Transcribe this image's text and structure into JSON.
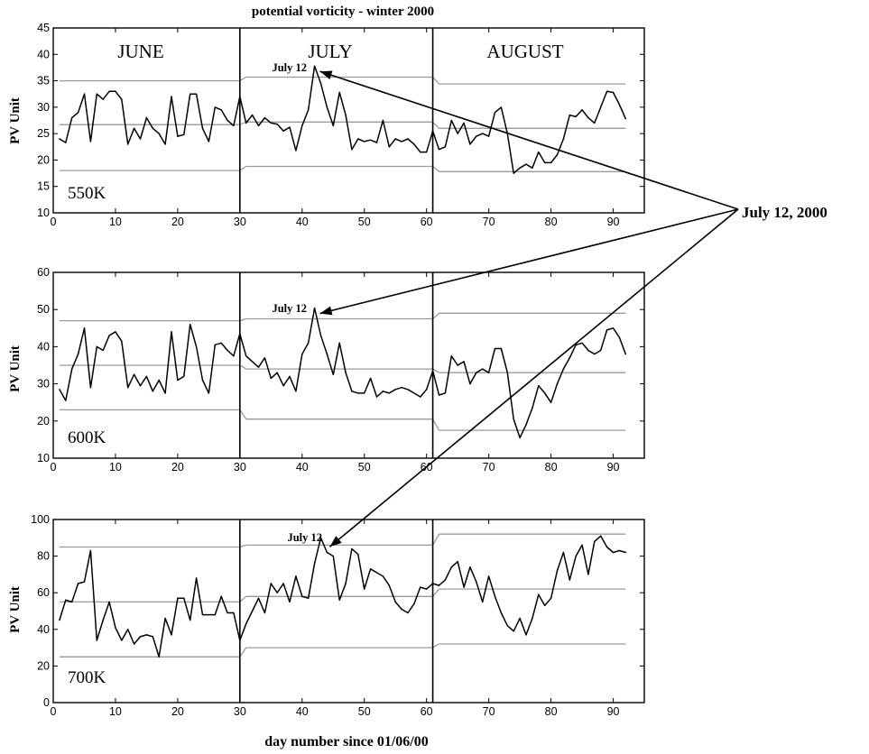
{
  "title": "potential vorticity - winter 2000",
  "xlabel": "day number since 01/06/00",
  "callout_label": "July 12, 2000",
  "months": [
    "JUNE",
    "JULY",
    "AUGUST"
  ],
  "chart_data": [
    {
      "type": "line",
      "level": "550K",
      "ylabel": "PV Unit",
      "xlim": [
        0,
        95
      ],
      "ylim": [
        10,
        45
      ],
      "xticks": [
        0,
        10,
        20,
        30,
        40,
        50,
        60,
        70,
        80,
        90
      ],
      "yticks": [
        10,
        15,
        20,
        25,
        30,
        35,
        40,
        45
      ],
      "month_boundaries": [
        30,
        61
      ],
      "annotation": {
        "text": "July 12",
        "x": 42,
        "y": 37.8
      },
      "series": [
        {
          "role": "data",
          "x": [
            1,
            2,
            3,
            4,
            5,
            6,
            7,
            8,
            9,
            10,
            11,
            12,
            13,
            14,
            15,
            16,
            17,
            18,
            19,
            20,
            21,
            22,
            23,
            24,
            25,
            26,
            27,
            28,
            29,
            30,
            31,
            32,
            33,
            34,
            35,
            36,
            37,
            38,
            39,
            40,
            41,
            42,
            43,
            44,
            45,
            46,
            47,
            48,
            49,
            50,
            51,
            52,
            53,
            54,
            55,
            56,
            57,
            58,
            59,
            60,
            61,
            62,
            63,
            64,
            65,
            66,
            67,
            68,
            69,
            70,
            71,
            72,
            73,
            74,
            75,
            76,
            77,
            78,
            79,
            80,
            81,
            82,
            83,
            84,
            85,
            86,
            87,
            88,
            89,
            90,
            91,
            92
          ],
          "y": [
            24,
            23.3,
            28,
            29,
            32.5,
            23.5,
            32.5,
            31.5,
            33,
            33,
            31.5,
            23,
            26,
            24,
            28,
            26,
            25,
            23,
            32,
            24.5,
            24.8,
            32.5,
            32.5,
            26,
            23.5,
            30,
            29.5,
            27.5,
            26.5,
            32,
            27,
            28.5,
            26.5,
            28,
            27,
            26.8,
            25.5,
            26.2,
            21.8,
            26.5,
            29.5,
            37.8,
            34.5,
            30,
            26.5,
            32.8,
            28.5,
            22,
            24,
            23.5,
            23.8,
            23.3,
            27.5,
            22.5,
            24,
            23.5,
            24,
            23,
            21.5,
            21.5,
            25.5,
            22,
            22.5,
            27.5,
            25,
            27,
            23,
            24.5,
            25,
            24.5,
            29,
            30,
            25,
            17.5,
            18.5,
            19.2,
            18.5,
            21.5,
            19.5,
            19.5,
            21,
            24,
            28.5,
            28.2,
            29.5,
            28,
            27,
            30,
            33,
            32.8,
            30.5,
            27.8
          ]
        },
        {
          "role": "mean",
          "x": [
            1,
            30,
            31,
            61,
            62,
            92
          ],
          "y": [
            26.7,
            26.7,
            27.2,
            27.2,
            26,
            26
          ]
        },
        {
          "role": "upper",
          "x": [
            1,
            30,
            31,
            61,
            62,
            92
          ],
          "y": [
            35,
            35,
            35.7,
            35.7,
            34.4,
            34.4
          ]
        },
        {
          "role": "lower",
          "x": [
            1,
            30,
            31,
            61,
            62,
            92
          ],
          "y": [
            18,
            18,
            18.8,
            18.8,
            17.8,
            17.8
          ]
        }
      ]
    },
    {
      "type": "line",
      "level": "600K",
      "ylabel": "PV Unit",
      "xlim": [
        0,
        95
      ],
      "ylim": [
        10,
        60
      ],
      "xticks": [
        0,
        10,
        20,
        30,
        40,
        50,
        60,
        70,
        80,
        90
      ],
      "yticks": [
        10,
        20,
        30,
        40,
        50,
        60
      ],
      "month_boundaries": [
        30,
        61
      ],
      "annotation": {
        "text": "July 12",
        "x": 42,
        "y": 50.4
      },
      "series": [
        {
          "role": "data",
          "x": [
            1,
            2,
            3,
            4,
            5,
            6,
            7,
            8,
            9,
            10,
            11,
            12,
            13,
            14,
            15,
            16,
            17,
            18,
            19,
            20,
            21,
            22,
            23,
            24,
            25,
            26,
            27,
            28,
            29,
            30,
            31,
            32,
            33,
            34,
            35,
            36,
            37,
            38,
            39,
            40,
            41,
            42,
            43,
            44,
            45,
            46,
            47,
            48,
            49,
            50,
            51,
            52,
            53,
            54,
            55,
            56,
            57,
            58,
            59,
            60,
            61,
            62,
            63,
            64,
            65,
            66,
            67,
            68,
            69,
            70,
            71,
            72,
            73,
            74,
            75,
            76,
            77,
            78,
            79,
            80,
            81,
            82,
            83,
            84,
            85,
            86,
            87,
            88,
            89,
            90,
            91,
            92
          ],
          "y": [
            28.5,
            25.5,
            34,
            38,
            45,
            29,
            40,
            39,
            43,
            44,
            41.5,
            29,
            32.5,
            29.5,
            32,
            28,
            31,
            27.5,
            44,
            31,
            32,
            46,
            40,
            31,
            27.5,
            40.5,
            41,
            39,
            37.5,
            43.5,
            37.5,
            36,
            34.5,
            37,
            31.5,
            33,
            29.5,
            32,
            28,
            38,
            41,
            50.4,
            43,
            38,
            32.5,
            41,
            33,
            28,
            27.5,
            27.5,
            31.5,
            26.5,
            28,
            27.5,
            28.5,
            29,
            28.5,
            27.5,
            26.5,
            28.5,
            33.5,
            27,
            27.5,
            37.5,
            35,
            36,
            30,
            33,
            34,
            33,
            39.5,
            39.5,
            33,
            20.5,
            15.5,
            19,
            23.5,
            29.5,
            27.5,
            25,
            30,
            34,
            37,
            40.5,
            41,
            39,
            38,
            39,
            44.5,
            45,
            42.5,
            38
          ]
        },
        {
          "role": "mean",
          "x": [
            1,
            30,
            31,
            61,
            62,
            92
          ],
          "y": [
            35,
            35,
            34,
            34,
            33,
            33
          ]
        },
        {
          "role": "upper",
          "x": [
            1,
            30,
            31,
            61,
            62,
            92
          ],
          "y": [
            47,
            47,
            47.5,
            47.5,
            49,
            49
          ]
        },
        {
          "role": "lower",
          "x": [
            1,
            30,
            31,
            61,
            62,
            92
          ],
          "y": [
            23,
            23,
            20.5,
            20.5,
            17.5,
            17.5
          ]
        }
      ]
    },
    {
      "type": "line",
      "level": "700K",
      "ylabel": "PV Unit",
      "xlim": [
        0,
        95
      ],
      "ylim": [
        0,
        100
      ],
      "xticks": [
        0,
        10,
        20,
        30,
        40,
        50,
        60,
        70,
        80,
        90
      ],
      "yticks": [
        0,
        20,
        40,
        60,
        80,
        100
      ],
      "month_boundaries": [
        30,
        61
      ],
      "annotation": {
        "text": "July 12",
        "x": 43,
        "y": 90
      },
      "series": [
        {
          "role": "data",
          "x": [
            1,
            2,
            3,
            4,
            5,
            6,
            7,
            8,
            9,
            10,
            11,
            12,
            13,
            14,
            15,
            16,
            17,
            18,
            19,
            20,
            21,
            22,
            23,
            24,
            25,
            26,
            27,
            28,
            29,
            30,
            31,
            32,
            33,
            34,
            35,
            36,
            37,
            38,
            39,
            40,
            41,
            42,
            43,
            44,
            45,
            46,
            47,
            48,
            49,
            50,
            51,
            52,
            53,
            54,
            55,
            56,
            57,
            58,
            59,
            60,
            61,
            62,
            63,
            64,
            65,
            66,
            67,
            68,
            69,
            70,
            71,
            72,
            73,
            74,
            75,
            76,
            77,
            78,
            79,
            80,
            81,
            82,
            83,
            84,
            85,
            86,
            87,
            88,
            89,
            90,
            91,
            92
          ],
          "y": [
            45,
            56,
            55,
            65,
            66,
            83,
            34,
            45,
            55,
            41,
            34,
            40,
            32,
            36,
            37,
            36,
            25,
            46,
            37,
            57,
            57,
            45,
            68,
            48,
            48,
            48,
            58,
            49,
            49,
            34,
            43,
            50,
            57,
            49,
            65,
            60,
            65,
            55,
            69,
            58,
            57,
            76,
            90,
            82,
            80,
            56,
            65,
            84,
            81,
            62,
            73,
            71,
            69,
            64,
            55,
            51,
            49,
            54,
            63,
            62,
            65,
            64,
            67,
            74,
            77,
            63,
            74,
            66,
            55,
            69,
            58,
            49,
            42,
            39,
            46,
            37,
            46,
            59,
            53,
            57,
            72,
            82,
            67,
            80,
            86,
            70,
            88,
            91,
            85,
            82,
            83,
            82
          ]
        },
        {
          "role": "mean",
          "x": [
            1,
            30,
            31,
            61,
            62,
            92
          ],
          "y": [
            55,
            55,
            58,
            58,
            62,
            62
          ]
        },
        {
          "role": "upper",
          "x": [
            1,
            30,
            31,
            61,
            62,
            92
          ],
          "y": [
            85,
            85,
            86,
            86,
            92,
            92
          ]
        },
        {
          "role": "lower",
          "x": [
            1,
            30,
            31,
            61,
            62,
            92
          ],
          "y": [
            25,
            25,
            30,
            30,
            32,
            32
          ]
        }
      ]
    }
  ]
}
